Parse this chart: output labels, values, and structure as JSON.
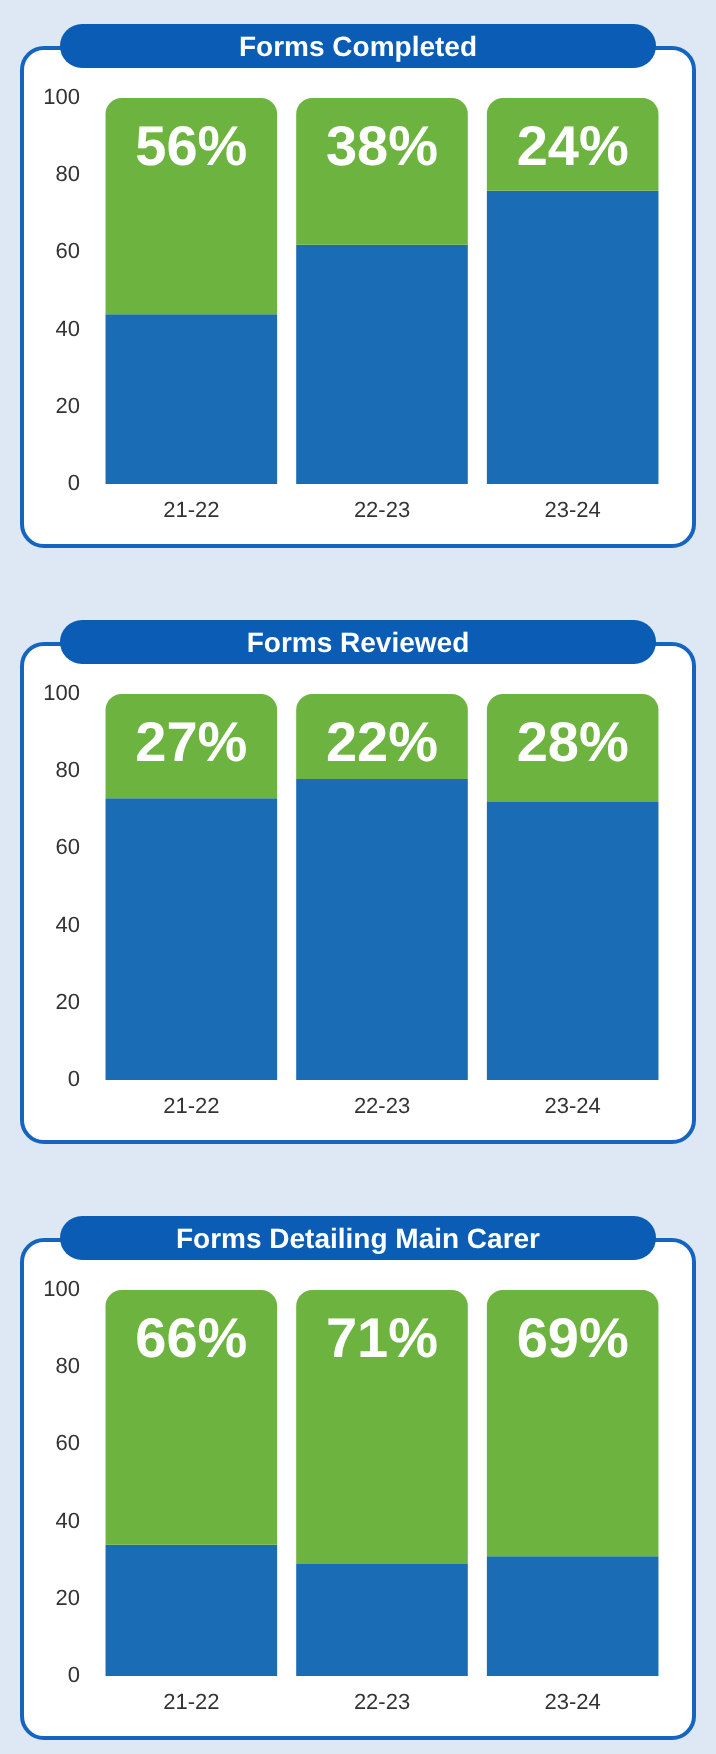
{
  "chart_data": [
    {
      "type": "bar",
      "title": "Forms Completed",
      "categories": [
        "21-22",
        "22-23",
        "23-24"
      ],
      "stacked": true,
      "ylim": [
        0,
        100
      ],
      "yticks": [
        0,
        20,
        40,
        60,
        80,
        100
      ],
      "series": [
        {
          "color": "#1a6db5",
          "values": [
            44,
            62,
            76
          ]
        },
        {
          "color": "#6db33f",
          "values": [
            56,
            38,
            24
          ],
          "value_labels": [
            "56%",
            "38%",
            "24%"
          ]
        }
      ]
    },
    {
      "type": "bar",
      "title": "Forms Reviewed",
      "categories": [
        "21-22",
        "22-23",
        "23-24"
      ],
      "stacked": true,
      "ylim": [
        0,
        100
      ],
      "yticks": [
        0,
        20,
        40,
        60,
        80,
        100
      ],
      "series": [
        {
          "color": "#1a6db5",
          "values": [
            73,
            78,
            72
          ]
        },
        {
          "color": "#6db33f",
          "values": [
            27,
            22,
            28
          ],
          "value_labels": [
            "27%",
            "22%",
            "28%"
          ]
        }
      ]
    },
    {
      "type": "bar",
      "title": "Forms Detailing Main Carer",
      "categories": [
        "21-22",
        "22-23",
        "23-24"
      ],
      "stacked": true,
      "ylim": [
        0,
        100
      ],
      "yticks": [
        0,
        20,
        40,
        60,
        80,
        100
      ],
      "series": [
        {
          "color": "#1a6db5",
          "values": [
            34,
            29,
            31
          ]
        },
        {
          "color": "#6db33f",
          "values": [
            66,
            71,
            69
          ],
          "value_labels": [
            "66%",
            "71%",
            "69%"
          ]
        }
      ]
    }
  ]
}
